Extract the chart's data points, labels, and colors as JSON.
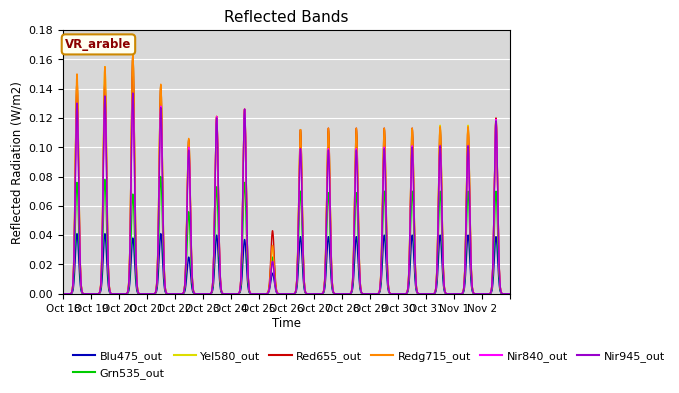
{
  "title": "Reflected Bands",
  "ylabel": "Reflected Radiation (W/m2)",
  "xlabel": "Time",
  "annotation_text": "VR_arable",
  "ylim": [
    0,
    0.18
  ],
  "background_color": "#d8d8d8",
  "series_order": [
    "Blu475_out",
    "Grn535_out",
    "Yel580_out",
    "Red655_out",
    "Redg715_out",
    "Nir840_out",
    "Nir945_out"
  ],
  "series": {
    "Blu475_out": {
      "color": "#0000bb",
      "lw": 1.0
    },
    "Grn535_out": {
      "color": "#00cc00",
      "lw": 1.0
    },
    "Yel580_out": {
      "color": "#dddd00",
      "lw": 1.0
    },
    "Red655_out": {
      "color": "#cc0000",
      "lw": 1.0
    },
    "Redg715_out": {
      "color": "#ff8800",
      "lw": 1.0
    },
    "Nir840_out": {
      "color": "#ff00ff",
      "lw": 1.0
    },
    "Nir945_out": {
      "color": "#9900cc",
      "lw": 1.0
    }
  },
  "xtick_labels": [
    "Oct 18",
    "Oct 19",
    "Oct 20",
    "Oct 21",
    "Oct 22",
    "Oct 23",
    "Oct 24",
    "Oct 25",
    "Oct 26",
    "Oct 27",
    "Oct 28",
    "Oct 29",
    "Oct 30",
    "Oct 31",
    "Nov 1",
    "Nov 2"
  ],
  "day_peaks": {
    "Blu475_out": [
      0.041,
      0.041,
      0.038,
      0.041,
      0.025,
      0.04,
      0.037,
      0.014,
      0.039,
      0.039,
      0.039,
      0.04,
      0.04,
      0.04,
      0.04,
      0.039
    ],
    "Grn535_out": [
      0.076,
      0.078,
      0.068,
      0.08,
      0.056,
      0.073,
      0.076,
      0.025,
      0.07,
      0.069,
      0.069,
      0.07,
      0.07,
      0.07,
      0.07,
      0.07
    ],
    "Yel580_out": [
      0.145,
      0.155,
      0.163,
      0.142,
      0.105,
      0.121,
      0.126,
      0.032,
      0.112,
      0.111,
      0.111,
      0.112,
      0.112,
      0.115,
      0.115,
      0.119
    ],
    "Red655_out": [
      0.145,
      0.145,
      0.163,
      0.142,
      0.105,
      0.121,
      0.126,
      0.043,
      0.112,
      0.113,
      0.113,
      0.113,
      0.113,
      0.113,
      0.113,
      0.12
    ],
    "Redg715_out": [
      0.15,
      0.155,
      0.163,
      0.143,
      0.106,
      0.121,
      0.126,
      0.033,
      0.112,
      0.113,
      0.113,
      0.113,
      0.113,
      0.114,
      0.114,
      0.119
    ],
    "Nir840_out": [
      0.13,
      0.132,
      0.135,
      0.128,
      0.1,
      0.121,
      0.126,
      0.022,
      0.099,
      0.099,
      0.099,
      0.1,
      0.101,
      0.101,
      0.101,
      0.119
    ],
    "Nir945_out": [
      0.13,
      0.135,
      0.137,
      0.127,
      0.098,
      0.12,
      0.126,
      0.022,
      0.099,
      0.098,
      0.098,
      0.099,
      0.1,
      0.101,
      0.101,
      0.118
    ]
  }
}
